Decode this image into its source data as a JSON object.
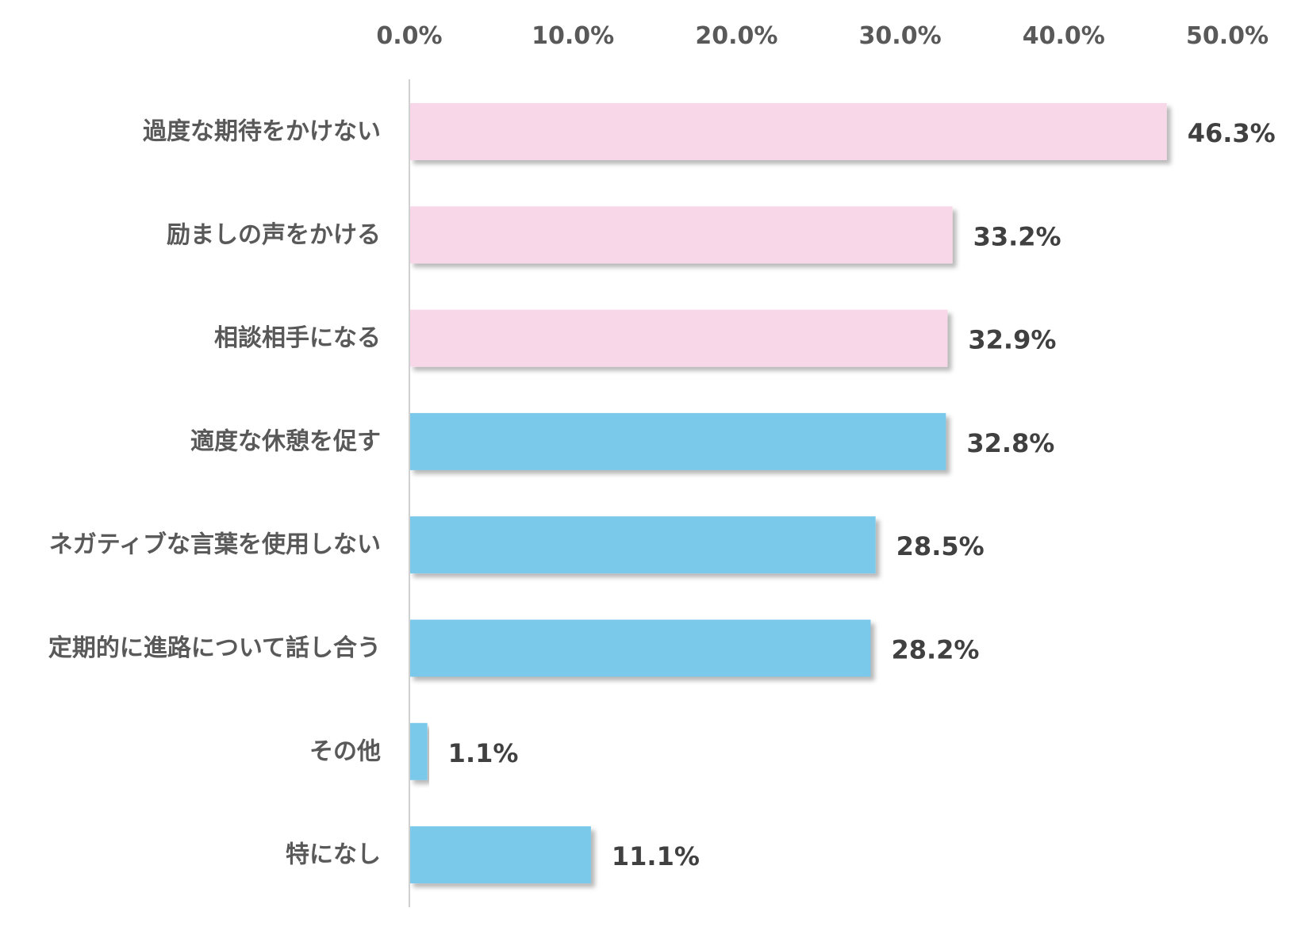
{
  "chart_data": {
    "type": "bar",
    "orientation": "horizontal",
    "categories": [
      "過度な期待をかけない",
      "励ましの声をかける",
      "相談相手になる",
      "適度な休憩を促す",
      "ネガティブな言葉を使用しない",
      "定期的に進路について話し合う",
      "その他",
      "特になし"
    ],
    "values": [
      46.3,
      33.2,
      32.9,
      32.8,
      28.5,
      28.2,
      1.1,
      11.1
    ],
    "data_labels": [
      "46.3%",
      "33.2%",
      "32.9%",
      "32.8%",
      "28.5%",
      "28.2%",
      "1.1%",
      "11.1%"
    ],
    "bar_colors": [
      "#f8d7e8",
      "#f8d7e8",
      "#f8d7e8",
      "#7ac9ea",
      "#7ac9ea",
      "#7ac9ea",
      "#7ac9ea",
      "#7ac9ea"
    ],
    "xlim": [
      0,
      50
    ],
    "x_ticks": [
      0,
      10,
      20,
      30,
      40,
      50
    ],
    "x_tick_labels": [
      "0.0%",
      "10.0%",
      "20.0%",
      "30.0%",
      "40.0%",
      "50.0%"
    ],
    "x_axis_position": "top",
    "grid": false,
    "legend": "none"
  },
  "colors": {
    "axis_line": "#d0d0d0",
    "pink_bar": "#f8d7e8",
    "blue_bar": "#7ac9ea"
  }
}
